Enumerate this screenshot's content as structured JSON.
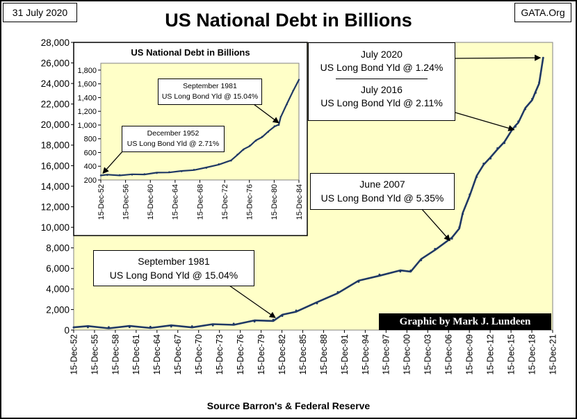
{
  "header": {
    "date": "31 July 2020",
    "title": "US National Debt in Billions",
    "site": "GATA.Org"
  },
  "footer": {
    "source": "Source Barron's & Federal Reserve",
    "credit": "Graphic by Mark J. Lundeen"
  },
  "colors": {
    "plot_bg": "#FFFFC8",
    "line": "#1F3864",
    "grid": "#BFBFBF"
  },
  "chart_data": [
    {
      "type": "line",
      "title": "US National Debt in Billions",
      "xlabel": "",
      "ylabel": "",
      "ylim": [
        0,
        28000
      ],
      "y_ticks": [
        "0",
        "2,000",
        "4,000",
        "6,000",
        "8,000",
        "10,000",
        "12,000",
        "14,000",
        "16,000",
        "18,000",
        "20,000",
        "22,000",
        "24,000",
        "26,000",
        "28,000"
      ],
      "x_ticks": [
        "15-Dec-52",
        "15-Dec-55",
        "15-Dec-58",
        "15-Dec-61",
        "15-Dec-64",
        "15-Dec-67",
        "15-Dec-70",
        "15-Dec-73",
        "15-Dec-76",
        "15-Dec-79",
        "15-Dec-82",
        "15-Dec-85",
        "15-Dec-88",
        "15-Dec-91",
        "15-Dec-94",
        "15-Dec-97",
        "15-Dec-00",
        "15-Dec-03",
        "15-Dec-06",
        "15-Dec-09",
        "15-Dec-12",
        "15-Dec-15",
        "15-Dec-18",
        "15-Dec-21"
      ],
      "xlim": [
        1952.95,
        2021.95
      ],
      "series": [
        {
          "name": "US National Debt ($ Billions)",
          "x": [
            1952.95,
            1955,
            1958,
            1961,
            1964,
            1967,
            1970,
            1973,
            1976,
            1979,
            1981.7,
            1983,
            1985,
            1988,
            1991,
            1994,
            1997,
            2000,
            2001.5,
            2003,
            2005,
            2007.45,
            2008.5,
            2009,
            2010,
            2011,
            2012,
            2013,
            2014,
            2015,
            2016,
            2016.6,
            2017,
            2018,
            2019,
            2019.5,
            2020,
            2020.58
          ],
          "values": [
            266,
            274,
            280,
            290,
            316,
            345,
            370,
            460,
            620,
            830,
            1000,
            1380,
            1900,
            2600,
            3700,
            4700,
            5400,
            5700,
            5800,
            6800,
            7900,
            8900,
            10000,
            11300,
            13200,
            14900,
            16200,
            16700,
            17700,
            18200,
            19500,
            19800,
            20300,
            21500,
            22500,
            23100,
            24100,
            26500
          ]
        }
      ],
      "annotations": [
        {
          "lines": [
            "July 2020",
            "US Long Bond Yld @ 1.24%"
          ],
          "x": 2020.58,
          "y": 26500
        },
        {
          "lines": [
            "July 2016",
            "US Long Bond Yld @ 2.11%"
          ],
          "x": 2016.6,
          "y": 19700
        },
        {
          "lines": [
            "June 2007",
            "US Long Bond Yld @ 5.35%"
          ],
          "x": 2007.45,
          "y": 8900
        },
        {
          "lines": [
            "September 1981",
            "US Long Bond Yld @ 15.04%"
          ],
          "x": 1981.7,
          "y": 1000
        }
      ]
    },
    {
      "type": "line",
      "title": "US National Debt in Billions",
      "xlabel": "",
      "ylabel": "",
      "ylim": [
        200,
        1900
      ],
      "y_ticks": [
        "200",
        "400",
        "600",
        "800",
        "1,000",
        "1,200",
        "1,400",
        "1,600",
        "1,800"
      ],
      "x_ticks": [
        "15-Dec-52",
        "15-Dec-56",
        "15-Dec-60",
        "15-Dec-64",
        "15-Dec-68",
        "15-Dec-72",
        "15-Dec-76",
        "15-Dec-80",
        "15-Dec-84"
      ],
      "xlim": [
        1952.95,
        1984.95
      ],
      "series": [
        {
          "name": "US National Debt ($ Billions)",
          "x": [
            1952.95,
            1954,
            1956,
            1958,
            1960,
            1962,
            1964,
            1966,
            1968,
            1970,
            1972,
            1974,
            1975,
            1976,
            1977,
            1978,
            1979,
            1980,
            1981,
            1981.7,
            1982,
            1983,
            1984,
            1984.95
          ],
          "values": [
            266,
            271,
            273,
            276,
            287,
            300,
            316,
            325,
            350,
            375,
            430,
            480,
            570,
            640,
            700,
            770,
            830,
            900,
            985,
            1000,
            1120,
            1300,
            1500,
            1660
          ]
        }
      ],
      "annotations": [
        {
          "lines": [
            "September 1981",
            "US Long Bond Yld @ 15.04%"
          ],
          "x": 1981.7,
          "y": 1000
        },
        {
          "lines": [
            "December 1952",
            "US Long Bond Yld @ 2.71%"
          ],
          "x": 1952.95,
          "y": 266
        }
      ]
    }
  ]
}
